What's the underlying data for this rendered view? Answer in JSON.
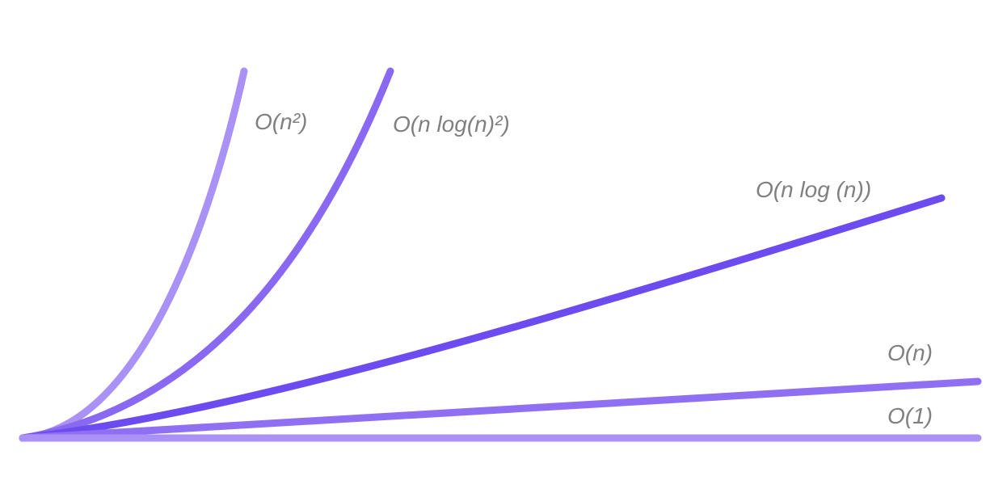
{
  "chart_data": {
    "type": "line",
    "title": "",
    "xlabel": "",
    "ylabel": "",
    "series": [
      {
        "name": "O(1)",
        "formula": "constant",
        "color": "#a991f5"
      },
      {
        "name": "O(n)",
        "formula": "linear",
        "color": "#8f70f3"
      },
      {
        "name": "O(n log (n))",
        "formula": "nlogn",
        "color": "#6c4cf0"
      },
      {
        "name": "O(n log(n)²)",
        "formula": "nlog2n",
        "color": "#8a69f2"
      },
      {
        "name": "O(n²)",
        "formula": "quadratic",
        "color": "#a991f5"
      }
    ]
  }
}
